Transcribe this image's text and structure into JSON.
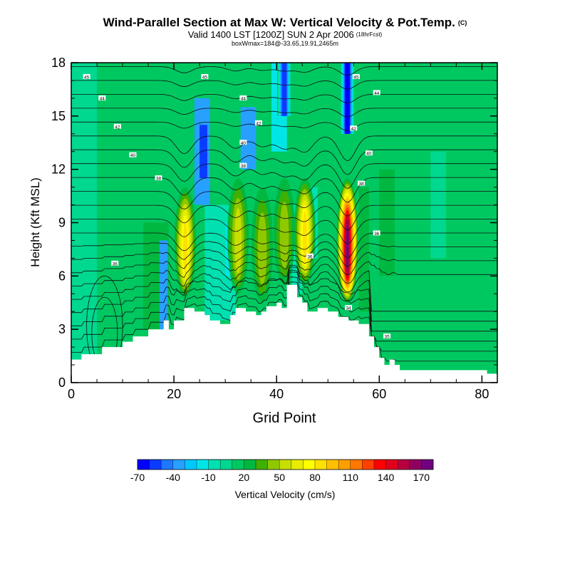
{
  "chart_data": {
    "type": "heatmap",
    "title": "Wind-Parallel Section at Max W: Vertical Velocity & Pot.Temp.",
    "title_mark": "(C)",
    "subtitle": "Valid 1400 LST [1200Z] SUN 2 Apr 2006",
    "forecast_note": "(18hrFcst)",
    "box_note": "boxWmax=184@-33.65,19.91,2465m",
    "xlabel": "Grid Point",
    "ylabel": "Height (Kft MSL)",
    "xlim": [
      0,
      83
    ],
    "ylim": [
      0,
      18
    ],
    "x_ticks": [
      "0",
      "20",
      "40",
      "60",
      "80"
    ],
    "y_ticks": [
      "0",
      "3",
      "6",
      "9",
      "12",
      "15",
      "18"
    ],
    "colorbar": {
      "label": "Vertical Velocity (cm/s)",
      "tick_labels": [
        "-70",
        "-40",
        "-10",
        "20",
        "50",
        "80",
        "110",
        "140",
        "170"
      ],
      "colors": [
        "#0000ff",
        "#0a3cff",
        "#1e78ff",
        "#28a0ff",
        "#00c8ff",
        "#00e6e6",
        "#00e0b0",
        "#00d890",
        "#00c860",
        "#00b840",
        "#40b000",
        "#90c800",
        "#c8e000",
        "#e8ec00",
        "#ffff00",
        "#ffe000",
        "#ffc000",
        "#ffa000",
        "#ff7800",
        "#ff4000",
        "#ff0000",
        "#e0001c",
        "#b80040",
        "#900060",
        "#700080"
      ]
    },
    "background_velocity": 10,
    "velocity_cells": [
      {
        "x": [
          0,
          5
        ],
        "y": [
          0,
          18
        ],
        "v": 0
      },
      {
        "x": [
          14,
          19
        ],
        "y": [
          3,
          9
        ],
        "v": 20
      },
      {
        "x": [
          17.2,
          18.8
        ],
        "y": [
          3,
          8
        ],
        "v": -40
      },
      {
        "x": [
          24,
          27
        ],
        "y": [
          10,
          16
        ],
        "v": -40
      },
      {
        "x": [
          25,
          26.5
        ],
        "y": [
          11.5,
          14.5
        ],
        "v": -60
      },
      {
        "x": [
          26,
          32
        ],
        "y": [
          3.5,
          10
        ],
        "v": -10
      },
      {
        "x": [
          30,
          31.5
        ],
        "y": [
          6,
          9
        ],
        "v": -25
      },
      {
        "x": [
          33,
          36
        ],
        "y": [
          12,
          15.5
        ],
        "v": -40
      },
      {
        "x": [
          39,
          42
        ],
        "y": [
          13,
          18
        ],
        "v": -20
      },
      {
        "x": [
          43,
          45
        ],
        "y": [
          5,
          10
        ],
        "v": -10
      },
      {
        "x": [
          46.5,
          48.5
        ],
        "y": [
          7,
          11
        ],
        "v": -10
      },
      {
        "x": [
          48,
          51
        ],
        "y": [
          7,
          11
        ],
        "v": 5
      },
      {
        "x": [
          53,
          55
        ],
        "y": [
          14,
          18
        ],
        "v": -40
      },
      {
        "x": [
          56,
          58
        ],
        "y": [
          4,
          11
        ],
        "v": 20
      },
      {
        "x": [
          60,
          63
        ],
        "y": [
          6,
          12
        ],
        "v": 20
      },
      {
        "x": [
          70,
          73
        ],
        "y": [
          7,
          13
        ],
        "v": 0
      }
    ],
    "updraft_plumes": [
      {
        "x": 22.2,
        "y": [
          4.8,
          11
        ],
        "peak": 80
      },
      {
        "x": 32.5,
        "y": [
          5,
          11.5
        ],
        "peak": 50
      },
      {
        "x": 37.2,
        "y": [
          4.5,
          11
        ],
        "peak": 40
      },
      {
        "x": 41.5,
        "y": [
          5.5,
          11.5
        ],
        "peak": 40
      },
      {
        "x": 45.5,
        "y": [
          5.5,
          11.5
        ],
        "peak": 80
      },
      {
        "x": 53.8,
        "y": [
          4.5,
          11.5
        ],
        "peak": 170
      }
    ],
    "downdraft_columns": [
      {
        "x": 41.5,
        "y": [
          15,
          18
        ],
        "v": -60
      },
      {
        "x": 53.8,
        "y": [
          14,
          18
        ],
        "v": -70
      }
    ],
    "isentrope_labels": [
      {
        "x": 3,
        "y": 17.2,
        "text": "45"
      },
      {
        "x": 6,
        "y": 16.0,
        "text": "44"
      },
      {
        "x": 9,
        "y": 14.4,
        "text": "42"
      },
      {
        "x": 12,
        "y": 12.8,
        "text": "40"
      },
      {
        "x": 17,
        "y": 11.5,
        "text": "38"
      },
      {
        "x": 26,
        "y": 17.2,
        "text": "45"
      },
      {
        "x": 33.5,
        "y": 16.0,
        "text": "44"
      },
      {
        "x": 36.5,
        "y": 14.6,
        "text": "42"
      },
      {
        "x": 33.5,
        "y": 13.5,
        "text": "40"
      },
      {
        "x": 33.5,
        "y": 12.2,
        "text": "38"
      },
      {
        "x": 8.5,
        "y": 6.7,
        "text": "36"
      },
      {
        "x": 55.5,
        "y": 17.2,
        "text": "45"
      },
      {
        "x": 59.5,
        "y": 16.3,
        "text": "44"
      },
      {
        "x": 55,
        "y": 14.3,
        "text": "42"
      },
      {
        "x": 58,
        "y": 12.9,
        "text": "40"
      },
      {
        "x": 56.5,
        "y": 11.2,
        "text": "38"
      },
      {
        "x": 59.5,
        "y": 8.4,
        "text": "36"
      },
      {
        "x": 46.5,
        "y": 7.1,
        "text": "36"
      },
      {
        "x": 54,
        "y": 4.2,
        "text": "34"
      },
      {
        "x": 61.5,
        "y": 2.6,
        "text": "35"
      }
    ],
    "terrain": [
      [
        0,
        1.3
      ],
      [
        2,
        1.6
      ],
      [
        6,
        2.0
      ],
      [
        10,
        2.3
      ],
      [
        12,
        2.6
      ],
      [
        15,
        3.0
      ],
      [
        18,
        3.5
      ],
      [
        19,
        3.0
      ],
      [
        20,
        3.5
      ],
      [
        22,
        4.2
      ],
      [
        24,
        4.0
      ],
      [
        26,
        3.8
      ],
      [
        27,
        3.5
      ],
      [
        29,
        3.3
      ],
      [
        31,
        3.8
      ],
      [
        32,
        4.2
      ],
      [
        34,
        4.0
      ],
      [
        36,
        3.8
      ],
      [
        37,
        4.0
      ],
      [
        38,
        4.3
      ],
      [
        40,
        4.5
      ],
      [
        41,
        4.2
      ],
      [
        42,
        5.5
      ],
      [
        43,
        5.5
      ],
      [
        44,
        4.8
      ],
      [
        45,
        4.5
      ],
      [
        46,
        4.0
      ],
      [
        48,
        4.2
      ],
      [
        50,
        4.0
      ],
      [
        52,
        3.7
      ],
      [
        54,
        3.5
      ],
      [
        56,
        3.3
      ],
      [
        58,
        2.6
      ],
      [
        59,
        2.0
      ],
      [
        60,
        1.4
      ],
      [
        61,
        1.0
      ],
      [
        62,
        1.3
      ],
      [
        63,
        1.0
      ],
      [
        64,
        0.7
      ],
      [
        80,
        0.7
      ],
      [
        81,
        0.5
      ],
      [
        83,
        0.5
      ]
    ]
  }
}
